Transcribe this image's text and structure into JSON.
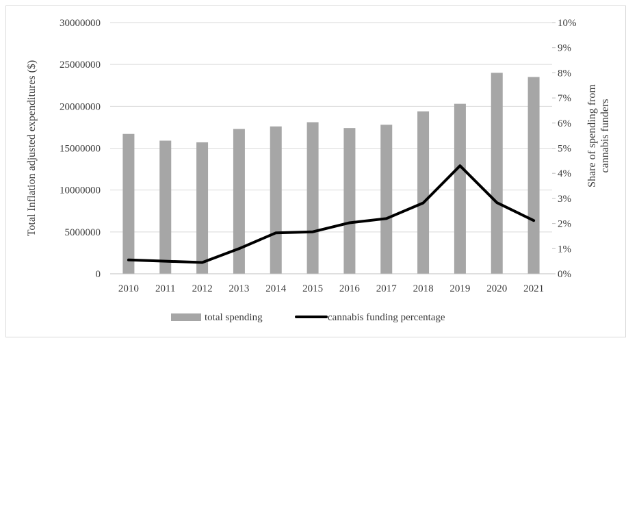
{
  "chart_data": {
    "type": "bar",
    "categories": [
      "2010",
      "2011",
      "2012",
      "2013",
      "2014",
      "2015",
      "2016",
      "2017",
      "2018",
      "2019",
      "2020",
      "2021"
    ],
    "series": [
      {
        "name": "total spending",
        "type": "bar",
        "axis": "left",
        "color": "#a6a6a6",
        "values": [
          16700000,
          15900000,
          15700000,
          17300000,
          17600000,
          18100000,
          17400000,
          17800000,
          19400000,
          20300000,
          24000000,
          23500000
        ]
      },
      {
        "name": "cannabis funding percentage",
        "type": "line",
        "axis": "right",
        "color": "#000000",
        "values": [
          0.55,
          0.5,
          0.45,
          1.0,
          1.63,
          1.67,
          2.03,
          2.2,
          2.82,
          4.3,
          2.83,
          2.12
        ]
      }
    ],
    "ylabel": "Total Inflation adjusted expenditures ($)",
    "y2label_lines": [
      "Share of spending from",
      "cannabis funders"
    ],
    "ylim": [
      0,
      30000000
    ],
    "y2lim": [
      0,
      10
    ],
    "y_ticks": [
      "0",
      "5000000",
      "10000000",
      "15000000",
      "20000000",
      "25000000",
      "30000000"
    ],
    "y2_ticks": [
      "0%",
      "1%",
      "2%",
      "3%",
      "4%",
      "5%",
      "6%",
      "7%",
      "8%",
      "9%",
      "10%"
    ],
    "grid": true,
    "legend_position": "bottom",
    "legend": [
      {
        "label": "total spending",
        "marker": "bar",
        "color": "#a6a6a6"
      },
      {
        "label": "cannabis funding percentage",
        "marker": "line",
        "color": "#000000"
      }
    ]
  }
}
